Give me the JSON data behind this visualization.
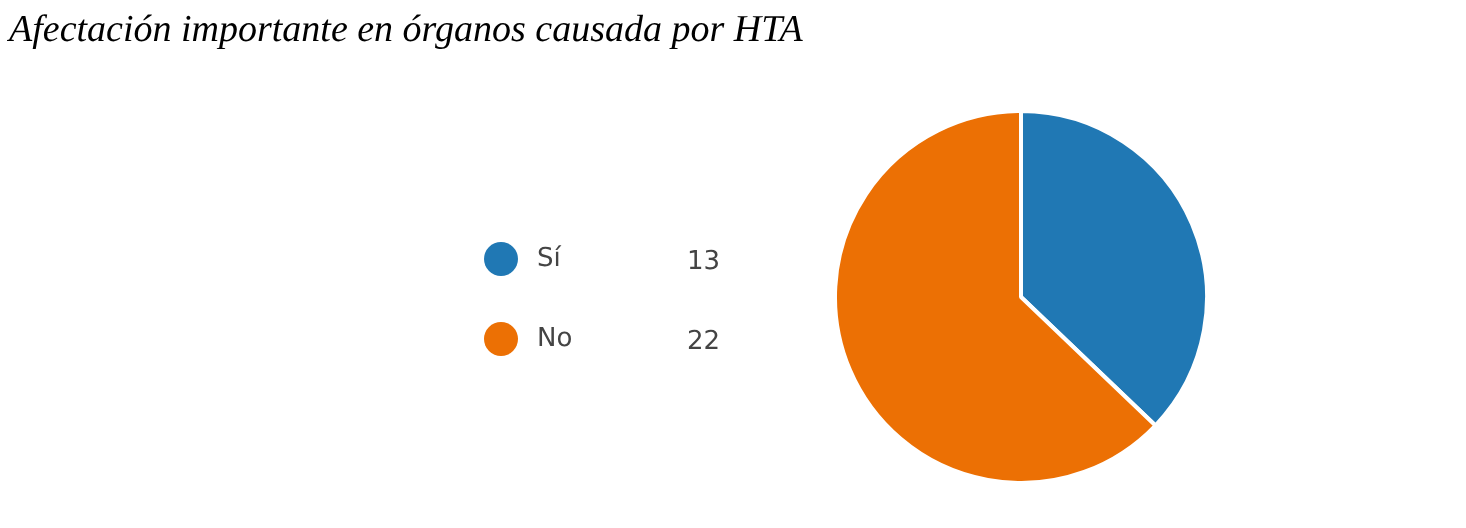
{
  "chart_data": {
    "type": "pie",
    "title": "Afectación importante en órganos causada por HTA",
    "categories": [
      "Sí",
      "No"
    ],
    "values": [
      13,
      22
    ],
    "colors": [
      "#2078b4",
      "#ec7004"
    ],
    "legend": "left",
    "data_labels": true
  }
}
